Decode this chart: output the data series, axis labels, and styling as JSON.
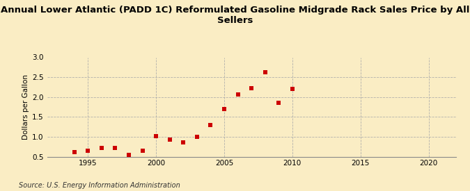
{
  "title": "Annual Lower Atlantic (PADD 1C) Reformulated Gasoline Midgrade Rack Sales Price by All\nSellers",
  "ylabel": "Dollars per Gallon",
  "source": "Source: U.S. Energy Information Administration",
  "years": [
    1994,
    1995,
    1996,
    1997,
    1998,
    1999,
    2000,
    2001,
    2002,
    2003,
    2004,
    2005,
    2006,
    2007,
    2008,
    2009,
    2010
  ],
  "values": [
    0.61,
    0.64,
    0.72,
    0.71,
    0.55,
    0.64,
    1.01,
    0.92,
    0.85,
    0.99,
    1.29,
    1.69,
    2.06,
    2.23,
    2.63,
    1.85,
    2.21
  ],
  "xlim": [
    1992,
    2022
  ],
  "ylim": [
    0.5,
    3.0
  ],
  "xticks": [
    1995,
    2000,
    2005,
    2010,
    2015,
    2020
  ],
  "yticks": [
    0.5,
    1.0,
    1.5,
    2.0,
    2.5,
    3.0
  ],
  "marker_color": "#cc0000",
  "marker": "s",
  "marker_size": 4,
  "bg_color": "#faedc4",
  "plot_bg_color": "#faedc4",
  "grid_color": "#aaaaaa",
  "title_fontsize": 9.5,
  "label_fontsize": 7.5,
  "tick_fontsize": 7.5,
  "source_fontsize": 7
}
